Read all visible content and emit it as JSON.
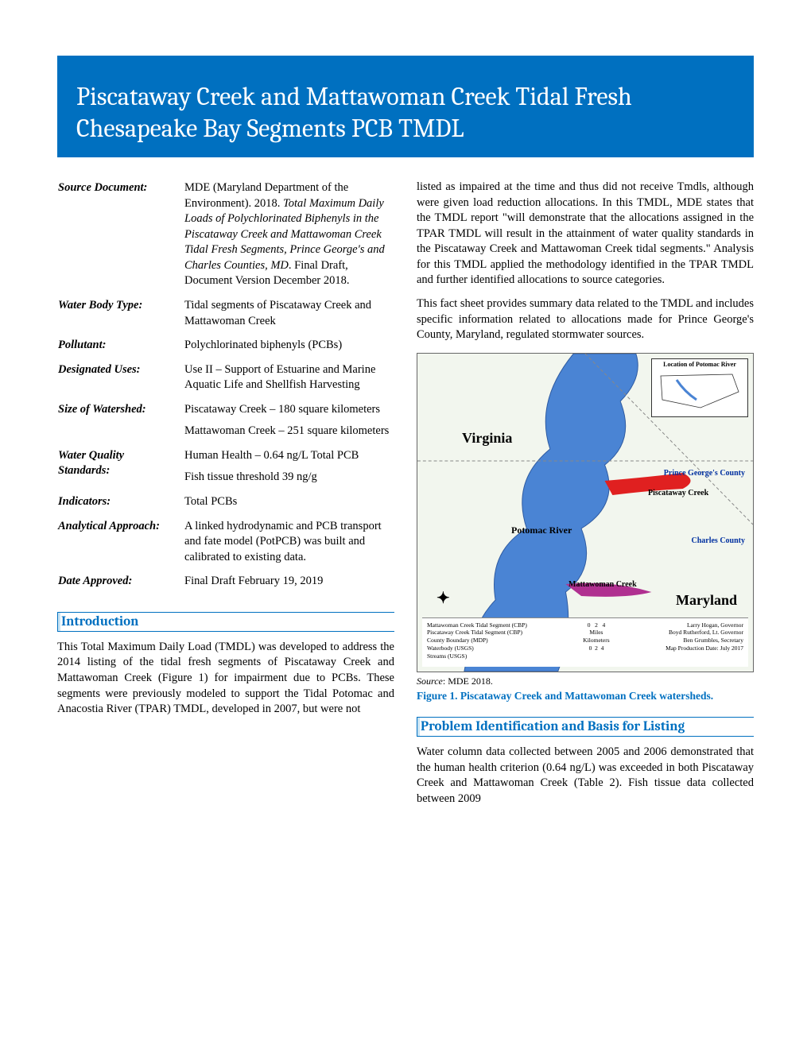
{
  "title": "Piscataway Creek and Mattawoman Creek Tidal Fresh Chesapeake Bay Segments PCB TMDL",
  "meta": [
    {
      "label": "Source Document:",
      "paras": [
        "MDE (Maryland Department of the Environment). 2018. <i>Total Maximum Daily Loads of Polychlorinated Biphenyls in the Piscataway Creek and Mattawoman Creek Tidal Fresh Segments, Prince George's and Charles Counties, MD</i>. Final Draft, Document Version December 2018."
      ]
    },
    {
      "label": "Water Body Type:",
      "paras": [
        "Tidal segments of Piscataway Creek and Mattawoman Creek"
      ]
    },
    {
      "label": "Pollutant:",
      "paras": [
        "Polychlorinated biphenyls (PCBs)"
      ]
    },
    {
      "label": "Designated Uses:",
      "paras": [
        "Use II – Support of Estuarine and Marine Aquatic Life and Shellfish Harvesting"
      ]
    },
    {
      "label": "Size of Watershed:",
      "paras": [
        "Piscataway Creek – 180 square kilometers",
        "Mattawoman Creek – 251 square kilometers"
      ]
    },
    {
      "label": "Water Quality Standards:",
      "paras": [
        "Human Health – 0.64 ng/L Total PCB",
        "Fish tissue threshold 39 ng/g"
      ]
    },
    {
      "label": "Indicators:",
      "paras": [
        "Total PCBs"
      ]
    },
    {
      "label": "Analytical Approach:",
      "paras": [
        "A linked hydrodynamic and PCB transport and fate model (PotPCB) was built and calibrated to existing data."
      ]
    },
    {
      "label": "Date Approved:",
      "paras": [
        "Final Draft February 19, 2019"
      ]
    }
  ],
  "sections": {
    "intro_head": "Introduction",
    "intro_p1": "This Total Maximum Daily Load (TMDL) was developed to address the 2014 listing of the tidal fresh segments of Piscataway Creek and Mattawoman Creek (Figure 1) for impairment due to PCBs. These segments were previously modeled to support the Tidal Potomac and Anacostia River (TPAR) TMDL, developed in 2007, but were not",
    "col2_p1": "listed as impaired at the time and thus did not receive Tmdls, although were given load reduction allocations. In this TMDL, MDE states that the TMDL report \"will demonstrate that the allocations assigned in the TPAR TMDL will result in the attainment of water quality standards in the Piscataway Creek and Mattawoman Creek tidal segments.\" Analysis for this TMDL applied the methodology identified in the TPAR TMDL and further identified allocations to source categories.",
    "col2_p2": "This fact sheet provides summary data related to the TMDL and includes specific information related to allocations made for Prince George's County, Maryland, regulated stormwater sources.",
    "problem_head": "Problem Identification and Basis for Listing",
    "problem_p1": "Water column data collected between 2005 and 2006 demonstrated that the human health criterion (0.64 ng/L) was exceeded in both Piscataway Creek and Mattawoman Creek (Table 2). Fish tissue data collected between 2009"
  },
  "figure": {
    "source_label": "Source",
    "source_text": ": MDE 2018.",
    "caption": "Figure 1. Piscataway Creek and Mattawoman Creek watersheds.",
    "inset_title": "Location of Potomac River",
    "labels": {
      "virginia": "Virginia",
      "maryland": "Maryland",
      "potomac": "Potomac River",
      "mattawoman": "Mattawoman Creek",
      "piscataway": "Piscataway Creek",
      "pgc": "Prince George's County",
      "charles": "Charles County"
    },
    "legend": {
      "l1": "Mattawoman Creek Tidal Segment (CBP)",
      "l2": "Piscataway Creek Tidal Segment (CBP)",
      "l3": "County Boundary (MDP)",
      "l4": "Waterbody (USGS)",
      "l5": "Streams (USGS)",
      "gov1": "Larry Hogan, Governor",
      "gov2": "Boyd Rutherford, Lt. Governor",
      "gov3": "Ben Grumbles, Secretary",
      "scale_mi": "Miles",
      "scale_km": "Kilometers",
      "date": "Map Production Date: July 2017"
    }
  },
  "colors": {
    "accent": "#0070c0",
    "water": "#4a84d4",
    "highlight": "#e02020"
  }
}
